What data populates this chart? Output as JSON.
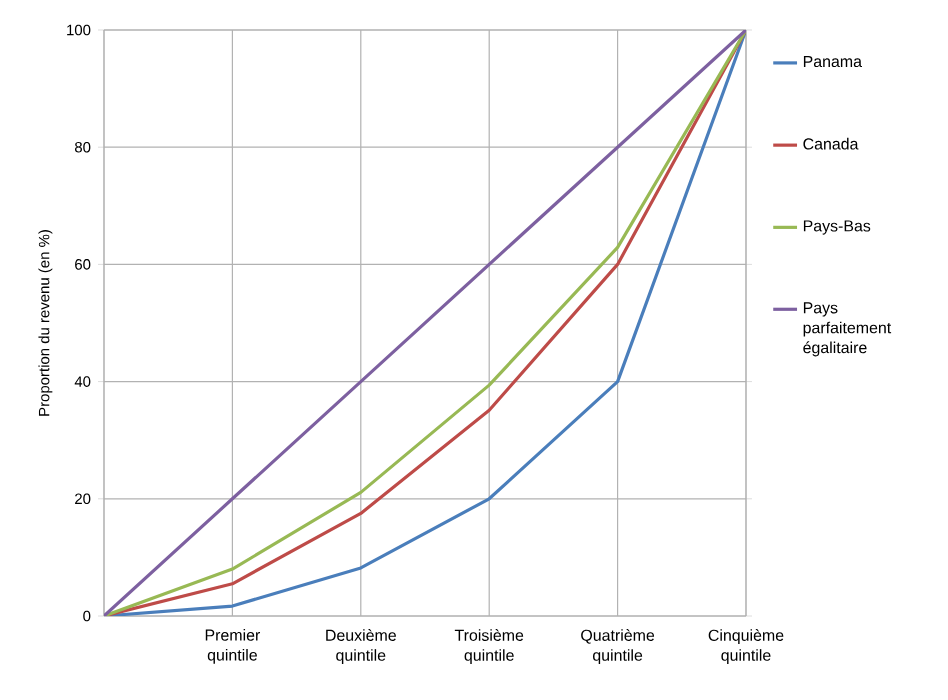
{
  "chart_data": {
    "type": "line",
    "ylabel": "Proportion du revenu (en %)",
    "categories": [
      null,
      "Premier quintile",
      "Deuxième quintile",
      "Troisième quintile",
      "Quatrième quintile",
      "Cinquième quintile"
    ],
    "ylim": [
      0,
      100
    ],
    "yticks": [
      0,
      20,
      40,
      60,
      80,
      100
    ],
    "grid": true,
    "legend": "right",
    "marker": "none",
    "line_style": "solid",
    "series": [
      {
        "name": "Panama",
        "color": "#4a7ebb",
        "values": [
          0,
          1.7,
          8.2,
          20,
          40,
          100
        ]
      },
      {
        "name": "Canada",
        "color": "#be4b48",
        "values": [
          0,
          5.5,
          17.5,
          35.1,
          60,
          100
        ]
      },
      {
        "name": "Pays-Bas",
        "color": "#98b954",
        "values": [
          0,
          8,
          21.1,
          39.4,
          62.9,
          100
        ]
      },
      {
        "name": "Pays parfaitement égalitaire",
        "color": "#7d60a0",
        "values": [
          0,
          20,
          40,
          60,
          80,
          100
        ]
      }
    ]
  }
}
